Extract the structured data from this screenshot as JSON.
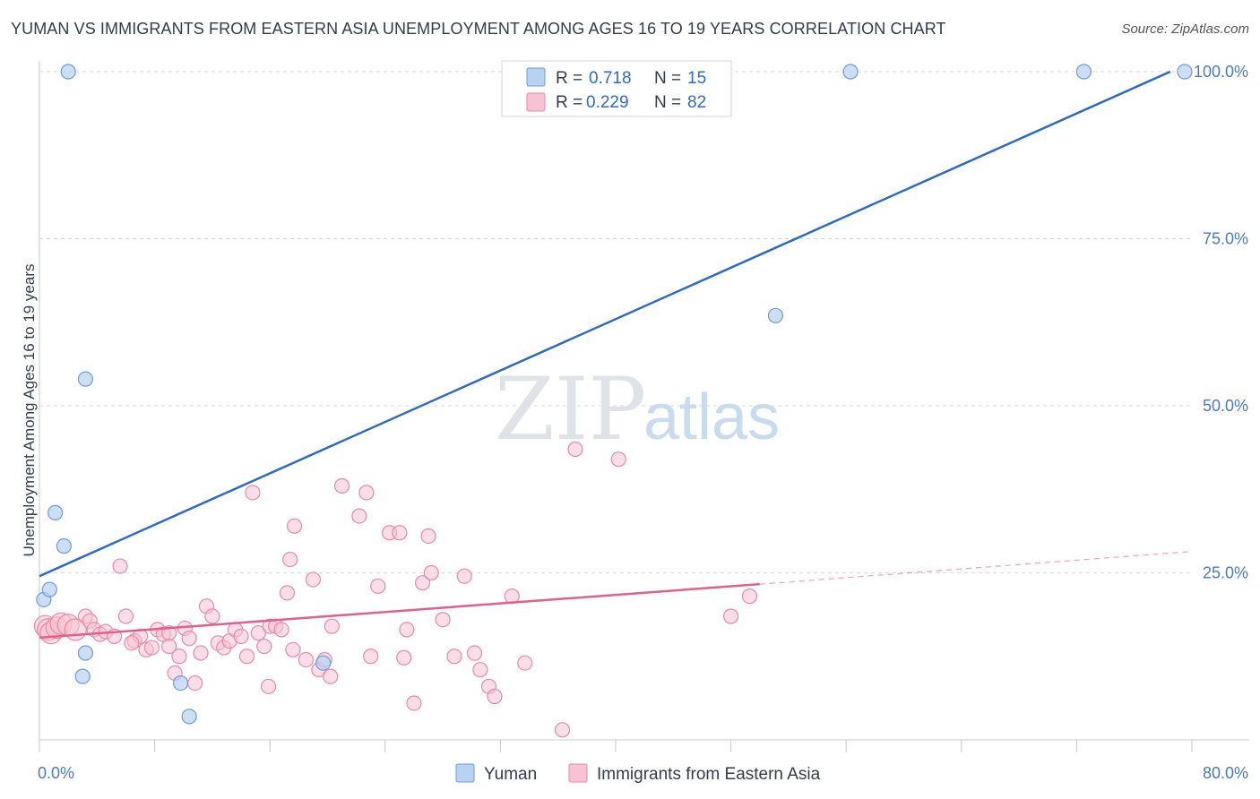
{
  "title": "YUMAN VS IMMIGRANTS FROM EASTERN ASIA UNEMPLOYMENT AMONG AGES 16 TO 19 YEARS CORRELATION CHART",
  "source": "Source: ZipAtlas.com",
  "watermark": {
    "zip": "ZIP",
    "atlas": "atlas"
  },
  "colors": {
    "yuman_fill": "#b8d2f2",
    "yuman_stroke": "#6f9bd6",
    "yuman_line": "#2f6ac2",
    "asia_fill": "#f7c3d3",
    "asia_stroke": "#e88aa8",
    "asia_line": "#e0608c",
    "grid": "#d8d8d8",
    "axis": "#c8c8c8"
  },
  "legend": {
    "rows": [
      {
        "r_label": "R =",
        "r_value": "0.718",
        "n_label": "N =",
        "n_value": "15"
      },
      {
        "r_label": "R =",
        "r_value": "0.229",
        "n_label": "N =",
        "n_value": "82"
      }
    ]
  },
  "chart_data": {
    "type": "scatter",
    "xlabel": "",
    "ylabel": "Unemployment Among Ages 16 to 19 years",
    "xlim": [
      0,
      80
    ],
    "ylim": [
      0,
      100
    ],
    "x_tick_labels": [
      "0.0%",
      "80.0%"
    ],
    "y_tick_labels": [
      "25.0%",
      "50.0%",
      "75.0%",
      "100.0%"
    ],
    "y_ticks": [
      25,
      50,
      75,
      100
    ],
    "x_minor_ticks": [
      0,
      8,
      16,
      24,
      32,
      40,
      48,
      56,
      64,
      72,
      80
    ],
    "series": [
      {
        "name": "Yuman",
        "points": [
          [
            2.0,
            100
          ],
          [
            0.3,
            21
          ],
          [
            0.7,
            22.5
          ],
          [
            1.1,
            34
          ],
          [
            1.7,
            29
          ],
          [
            3.2,
            54
          ],
          [
            3.2,
            13
          ],
          [
            3.0,
            9.5
          ],
          [
            9.8,
            8.5
          ],
          [
            10.4,
            3.5
          ],
          [
            19.7,
            11.5
          ],
          [
            56.3,
            100
          ],
          [
            51.1,
            63.5
          ],
          [
            72.5,
            100
          ],
          [
            79.5,
            100
          ]
        ],
        "trend": {
          "x": [
            0.0,
            78.5
          ],
          "y": [
            24.5,
            100
          ]
        }
      },
      {
        "name": "Immigrants from Eastern Asia",
        "points": [
          [
            0.4,
            17
          ],
          [
            0.6,
            16.5
          ],
          [
            0.8,
            16
          ],
          [
            1.2,
            16.8
          ],
          [
            1.5,
            17.4
          ],
          [
            2.0,
            17.2
          ],
          [
            2.5,
            16.5
          ],
          [
            3.2,
            18.5
          ],
          [
            3.5,
            17.8
          ],
          [
            3.8,
            16.5
          ],
          [
            4.2,
            15.8
          ],
          [
            4.6,
            16.2
          ],
          [
            5.2,
            15.5
          ],
          [
            5.6,
            26
          ],
          [
            6.0,
            18.5
          ],
          [
            6.6,
            14.8
          ],
          [
            7.0,
            15.5
          ],
          [
            7.4,
            13.5
          ],
          [
            7.8,
            13.8
          ],
          [
            8.2,
            16.5
          ],
          [
            8.6,
            15.8
          ],
          [
            9.0,
            14.0
          ],
          [
            9.4,
            10.0
          ],
          [
            9.7,
            12.5
          ],
          [
            10.1,
            16.7
          ],
          [
            10.4,
            15.2
          ],
          [
            10.8,
            8.5
          ],
          [
            11.2,
            13.0
          ],
          [
            11.6,
            20.0
          ],
          [
            12.0,
            18.5
          ],
          [
            12.4,
            14.5
          ],
          [
            12.8,
            13.8
          ],
          [
            13.2,
            14.8
          ],
          [
            13.6,
            16.5
          ],
          [
            14.0,
            15.5
          ],
          [
            14.4,
            12.5
          ],
          [
            14.8,
            37
          ],
          [
            15.2,
            16.0
          ],
          [
            15.6,
            14.0
          ],
          [
            16.0,
            17.0
          ],
          [
            16.4,
            17.0
          ],
          [
            16.8,
            16.5
          ],
          [
            17.2,
            22.0
          ],
          [
            17.4,
            27.0
          ],
          [
            17.7,
            32.0
          ],
          [
            18.5,
            12.0
          ],
          [
            19.0,
            24.0
          ],
          [
            19.4,
            10.5
          ],
          [
            19.8,
            12.0
          ],
          [
            20.2,
            9.5
          ],
          [
            21.0,
            38.0
          ],
          [
            22.2,
            33.5
          ],
          [
            23.0,
            12.5
          ],
          [
            23.5,
            23.0
          ],
          [
            24.3,
            31.0
          ],
          [
            25.0,
            31.0
          ],
          [
            25.5,
            16.5
          ],
          [
            26.0,
            5.5
          ],
          [
            27.0,
            30.5
          ],
          [
            28.0,
            18.0
          ],
          [
            28.8,
            12.5
          ],
          [
            29.5,
            24.5
          ],
          [
            30.2,
            13.0
          ],
          [
            30.6,
            10.5
          ],
          [
            31.2,
            8.0
          ],
          [
            31.6,
            6.5
          ],
          [
            32.8,
            21.5
          ],
          [
            33.7,
            11.5
          ],
          [
            36.3,
            1.5
          ],
          [
            37.2,
            43.5
          ],
          [
            40.2,
            42.0
          ],
          [
            48.0,
            18.5
          ],
          [
            49.3,
            21.5
          ],
          [
            22.7,
            37
          ],
          [
            20.3,
            17.0
          ],
          [
            9.0,
            16.0
          ],
          [
            17.6,
            13.5
          ],
          [
            25.3,
            12.3
          ],
          [
            26.6,
            23.5
          ],
          [
            27.2,
            25.0
          ],
          [
            15.9,
            8.0
          ],
          [
            6.4,
            14.5
          ]
        ],
        "trend": {
          "x": [
            0.0,
            50.0
          ],
          "y": [
            15.3,
            23.3
          ]
        },
        "trend_dashed": {
          "x": [
            50.0,
            80.0
          ],
          "y": [
            23.3,
            28.2
          ]
        }
      }
    ],
    "legend_entries": [
      "Yuman",
      "Immigrants from Eastern Asia"
    ],
    "legend_position": "top-center",
    "grid": true
  }
}
